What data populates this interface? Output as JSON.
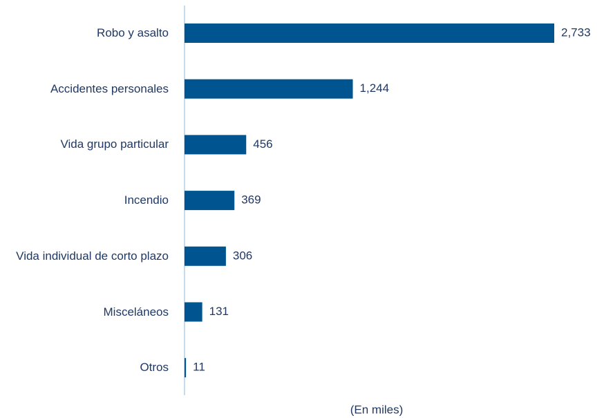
{
  "chart_data": {
    "type": "barh",
    "categories": [
      "Robo y asalto",
      "Accidentes personales",
      "Vida grupo particular",
      "Incendio",
      "Vida individual de corto plazo",
      "Misceláneos",
      "Otros"
    ],
    "values": [
      2733,
      1244,
      456,
      369,
      306,
      131,
      11
    ],
    "value_labels": [
      "2,733",
      "1,244",
      "456",
      "369",
      "306",
      "131",
      "11"
    ],
    "color": "#005590",
    "xlabel": "(En miles)"
  }
}
